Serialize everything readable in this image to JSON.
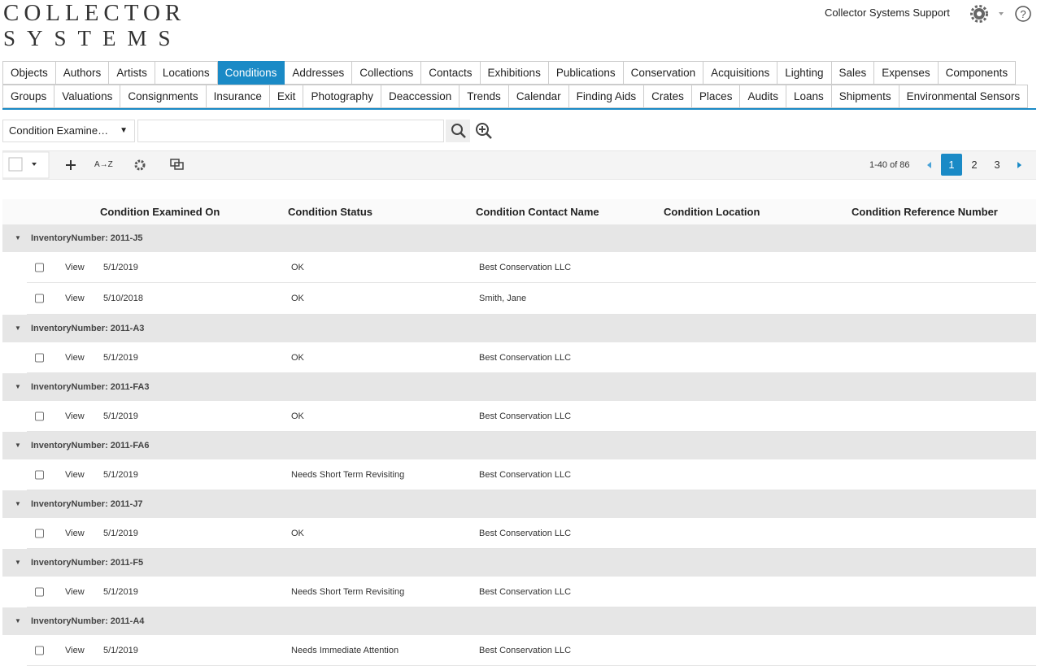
{
  "header": {
    "logo_line1": "COLLECTOR",
    "logo_line2": "SYSTEMS",
    "user": "Collector Systems Support"
  },
  "tabs": {
    "rows": [
      [
        "Objects",
        "Authors",
        "Artists",
        "Locations",
        "Conditions",
        "Addresses",
        "Collections",
        "Contacts",
        "Exhibitions",
        "Publications",
        "Conservation",
        "Acquisitions",
        "Lighting",
        "Sales",
        "Expenses",
        "Components"
      ],
      [
        "Groups",
        "Valuations",
        "Consignments",
        "Insurance",
        "Exit",
        "Photography",
        "Deaccession",
        "Trends",
        "Calendar",
        "Finding Aids",
        "Crates",
        "Places",
        "Audits",
        "Loans",
        "Shipments",
        "Environmental Sensors"
      ]
    ],
    "active_row": 0,
    "active_index": 4
  },
  "search": {
    "field": "Condition Examine…"
  },
  "toolbar": {
    "sort": "A→Z",
    "range": "1-40 of 86",
    "pages": [
      "1",
      "2",
      "3"
    ],
    "current_page": 0
  },
  "table": {
    "columns": [
      "Condition Examined On",
      "Condition Status",
      "Condition Contact Name",
      "Condition Location",
      "Condition Reference Number"
    ],
    "groups": [
      {
        "label": "InventoryNumber: 2011-J5",
        "rows": [
          {
            "action": "View",
            "date": "5/1/2019",
            "status": "OK",
            "contact": "Best Conservation LLC"
          },
          {
            "action": "View",
            "date": "5/10/2018",
            "status": "OK",
            "contact": "Smith, Jane"
          }
        ]
      },
      {
        "label": "InventoryNumber: 2011-A3",
        "rows": [
          {
            "action": "View",
            "date": "5/1/2019",
            "status": "OK",
            "contact": "Best Conservation LLC"
          }
        ]
      },
      {
        "label": "InventoryNumber: 2011-FA3",
        "rows": [
          {
            "action": "View",
            "date": "5/1/2019",
            "status": "OK",
            "contact": "Best Conservation LLC"
          }
        ]
      },
      {
        "label": "InventoryNumber: 2011-FA6",
        "rows": [
          {
            "action": "View",
            "date": "5/1/2019",
            "status": "Needs Short Term Revisiting",
            "contact": "Best Conservation LLC"
          }
        ]
      },
      {
        "label": "InventoryNumber: 2011-J7",
        "rows": [
          {
            "action": "View",
            "date": "5/1/2019",
            "status": "OK",
            "contact": "Best Conservation LLC"
          }
        ]
      },
      {
        "label": "InventoryNumber: 2011-F5",
        "rows": [
          {
            "action": "View",
            "date": "5/1/2019",
            "status": "Needs Short Term Revisiting",
            "contact": "Best Conservation LLC"
          }
        ]
      },
      {
        "label": "InventoryNumber: 2011-A4",
        "rows": [
          {
            "action": "View",
            "date": "5/1/2019",
            "status": "Needs Immediate Attention",
            "contact": "Best Conservation LLC"
          }
        ]
      }
    ]
  }
}
